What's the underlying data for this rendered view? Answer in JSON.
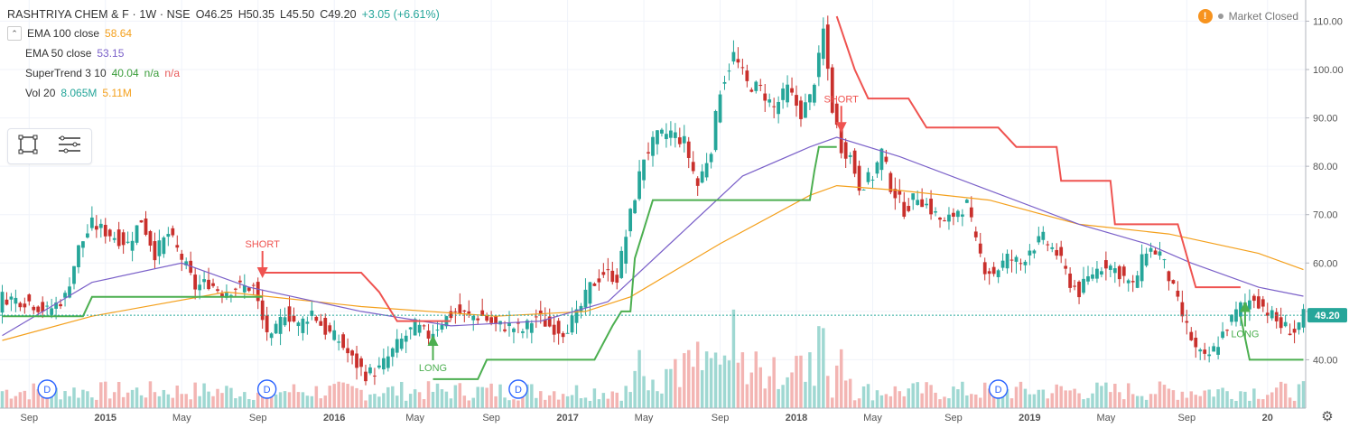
{
  "header": {
    "symbol": "RASHTRIYA CHEM & F · 1W · NSE",
    "open": "O46.25",
    "high": "H50.35",
    "low": "L45.50",
    "close": "C49.20",
    "change": "+3.05 (+6.61%)"
  },
  "indicators": [
    {
      "name": "EMA 100 close",
      "value": "58.64",
      "color": "#f4a01c"
    },
    {
      "name": "EMA 50 close",
      "value": "53.15",
      "color": "#7b61c9"
    },
    {
      "name": "SuperTrend 3 10",
      "value": "40.04",
      "value2": "n/a",
      "value3": "n/a"
    },
    {
      "name": "Vol 20",
      "value": "8.065M",
      "value2": "5.11M"
    }
  ],
  "status": {
    "market": "Market Closed",
    "warn_icon": "!"
  },
  "colors": {
    "up": "#26a69a",
    "down": "#c9302c",
    "ema100": "#f4a01c",
    "ema50": "#7b61c9",
    "st_up": "#4caf50",
    "st_down": "#ef5350",
    "price_label": "#26a69a"
  },
  "chart_data": {
    "type": "candlestick",
    "title": "RASHTRIYA CHEM & F · 1W · NSE",
    "ylim": [
      30,
      114
    ],
    "y_ticks": [
      40,
      50,
      60,
      70,
      80,
      90,
      100,
      110
    ],
    "y_tick_labels": [
      "40.00",
      "50.00",
      "60.00",
      "70.00",
      "80.00",
      "90.00",
      "100.00",
      "110.00"
    ],
    "x_tick_labels": [
      "Sep",
      "2015",
      "May",
      "Sep",
      "2016",
      "May",
      "Sep",
      "2017",
      "May",
      "Sep",
      "2018",
      "May",
      "Sep",
      "2019",
      "May",
      "Sep",
      "20"
    ],
    "x_tick_weeks": [
      6,
      23,
      40,
      57,
      74,
      92,
      109,
      126,
      143,
      160,
      177,
      194,
      212,
      229,
      246,
      264,
      282
    ],
    "last_price": 49.2,
    "last_price_label": "49.20",
    "close_path": [
      [
        0,
        53
      ],
      [
        6,
        52
      ],
      [
        10,
        50
      ],
      [
        14,
        53
      ],
      [
        17,
        63
      ],
      [
        20,
        68
      ],
      [
        24,
        66
      ],
      [
        28,
        64
      ],
      [
        31,
        69
      ],
      [
        34,
        62
      ],
      [
        37,
        66
      ],
      [
        40,
        61
      ],
      [
        43,
        55
      ],
      [
        46,
        56
      ],
      [
        49,
        54
      ],
      [
        52,
        55
      ],
      [
        56,
        55
      ],
      [
        58,
        48
      ],
      [
        60,
        44
      ],
      [
        63,
        50
      ],
      [
        66,
        47
      ],
      [
        69,
        50
      ],
      [
        72,
        46
      ],
      [
        75,
        44
      ],
      [
        78,
        40
      ],
      [
        81,
        37
      ],
      [
        84,
        38
      ],
      [
        88,
        43
      ],
      [
        92,
        47
      ],
      [
        95,
        45
      ],
      [
        98,
        48
      ],
      [
        101,
        50
      ],
      [
        104,
        49
      ],
      [
        107,
        49
      ],
      [
        110,
        47
      ],
      [
        113,
        47
      ],
      [
        116,
        46
      ],
      [
        119,
        49
      ],
      [
        122,
        47
      ],
      [
        125,
        46
      ],
      [
        128,
        49
      ],
      [
        131,
        55
      ],
      [
        134,
        58
      ],
      [
        137,
        57
      ],
      [
        140,
        70
      ],
      [
        143,
        82
      ],
      [
        146,
        86
      ],
      [
        149,
        87
      ],
      [
        152,
        85
      ],
      [
        155,
        76
      ],
      [
        158,
        84
      ],
      [
        160,
        96
      ],
      [
        163,
        103
      ],
      [
        166,
        97
      ],
      [
        169,
        96
      ],
      [
        172,
        92
      ],
      [
        175,
        96
      ],
      [
        178,
        91
      ],
      [
        180,
        94
      ],
      [
        182,
        102
      ],
      [
        183,
        108
      ],
      [
        185,
        92
      ],
      [
        187,
        84
      ],
      [
        189,
        82
      ],
      [
        191,
        76
      ],
      [
        194,
        78
      ],
      [
        196,
        83
      ],
      [
        198,
        76
      ],
      [
        201,
        71
      ],
      [
        204,
        74
      ],
      [
        207,
        71
      ],
      [
        210,
        68
      ],
      [
        213,
        71
      ],
      [
        215,
        72
      ],
      [
        217,
        64
      ],
      [
        219,
        59
      ],
      [
        221,
        58
      ],
      [
        224,
        61
      ],
      [
        227,
        60
      ],
      [
        229,
        63
      ],
      [
        232,
        65
      ],
      [
        235,
        62
      ],
      [
        238,
        56
      ],
      [
        240,
        54
      ],
      [
        243,
        58
      ],
      [
        246,
        60
      ],
      [
        249,
        58
      ],
      [
        252,
        55
      ],
      [
        255,
        63
      ],
      [
        258,
        62
      ],
      [
        260,
        57
      ],
      [
        263,
        49
      ],
      [
        266,
        42
      ],
      [
        268,
        40
      ],
      [
        270,
        42
      ],
      [
        273,
        47
      ],
      [
        276,
        51
      ],
      [
        279,
        53
      ],
      [
        282,
        50
      ],
      [
        285,
        47
      ],
      [
        288,
        46
      ],
      [
        290,
        49
      ]
    ],
    "ema100": [
      [
        0,
        44
      ],
      [
        20,
        49
      ],
      [
        50,
        54
      ],
      [
        80,
        51
      ],
      [
        110,
        49
      ],
      [
        130,
        50
      ],
      [
        140,
        53
      ],
      [
        160,
        64
      ],
      [
        180,
        74
      ],
      [
        186,
        76
      ],
      [
        200,
        75
      ],
      [
        220,
        73
      ],
      [
        240,
        68
      ],
      [
        260,
        66
      ],
      [
        280,
        62
      ],
      [
        290,
        58.64
      ]
    ],
    "ema50": [
      [
        0,
        45
      ],
      [
        20,
        56
      ],
      [
        40,
        60
      ],
      [
        55,
        55
      ],
      [
        80,
        50
      ],
      [
        100,
        47
      ],
      [
        120,
        48
      ],
      [
        135,
        52
      ],
      [
        150,
        65
      ],
      [
        165,
        78
      ],
      [
        180,
        84
      ],
      [
        186,
        86
      ],
      [
        200,
        82
      ],
      [
        220,
        75
      ],
      [
        240,
        68
      ],
      [
        255,
        64
      ],
      [
        265,
        60
      ],
      [
        280,
        55
      ],
      [
        290,
        53.15
      ]
    ],
    "supertrend_segments": [
      {
        "trend": "up",
        "points": [
          [
            0,
            49
          ],
          [
            18,
            49
          ],
          [
            20,
            53
          ],
          [
            58,
            53
          ]
        ]
      },
      {
        "trend": "down",
        "points": [
          [
            58,
            58
          ],
          [
            80,
            58
          ],
          [
            84,
            54
          ],
          [
            88,
            48
          ],
          [
            100,
            48
          ]
        ]
      },
      {
        "trend": "up",
        "points": [
          [
            96,
            36
          ],
          [
            106,
            36
          ],
          [
            108,
            40
          ],
          [
            132,
            40
          ],
          [
            136,
            47
          ],
          [
            138,
            50
          ],
          [
            140,
            50
          ],
          [
            141,
            61
          ],
          [
            143,
            67
          ],
          [
            145,
            73
          ],
          [
            160,
            73
          ],
          [
            170,
            73
          ],
          [
            180,
            73
          ],
          [
            181,
            79
          ],
          [
            182,
            84
          ],
          [
            186,
            84
          ]
        ]
      },
      {
        "trend": "down",
        "points": [
          [
            186,
            111
          ],
          [
            190,
            100
          ],
          [
            193,
            94
          ],
          [
            202,
            94
          ],
          [
            206,
            88
          ],
          [
            222,
            88
          ],
          [
            226,
            84
          ],
          [
            235,
            84
          ],
          [
            236,
            77
          ],
          [
            247,
            77
          ],
          [
            248,
            68
          ],
          [
            262,
            68
          ],
          [
            266,
            55
          ],
          [
            276,
            55
          ]
        ]
      },
      {
        "trend": "up",
        "points": [
          [
            276,
            49
          ],
          [
            278,
            40
          ],
          [
            290,
            40
          ]
        ]
      }
    ],
    "signals": [
      {
        "label": "SHORT",
        "week": 58,
        "price": 58,
        "type": "short"
      },
      {
        "label": "LONG",
        "week": 96,
        "price": 44,
        "type": "long"
      },
      {
        "label": "SHORT",
        "week": 187,
        "price": 88,
        "type": "short"
      },
      {
        "label": "LONG",
        "week": 277,
        "price": 51,
        "type": "long"
      }
    ],
    "dividend_markers": [
      {
        "label": "D",
        "week": 10
      },
      {
        "label": "D",
        "week": 59
      },
      {
        "label": "D",
        "week": 115
      },
      {
        "label": "D",
        "week": 222
      }
    ]
  }
}
